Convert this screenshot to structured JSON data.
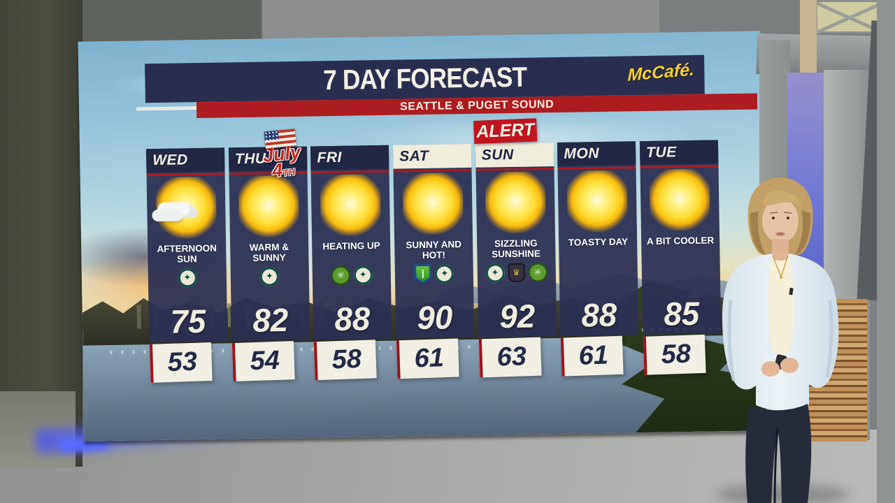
{
  "broadcast": {
    "title": "7 DAY FORECAST",
    "subtitle": "SEATTLE & PUGET SOUND",
    "sponsor": "McCafé.",
    "alert_label": "ALERT",
    "holiday": {
      "word": "July",
      "number": "4",
      "suffix": "TH"
    }
  },
  "forecast": {
    "location": "Seattle & Puget Sound",
    "days": [
      {
        "label": "WED",
        "header": "dark",
        "icon": "sun-behind-cloud-icon",
        "condition": "AFTERNOON SUN",
        "high": "75",
        "low": "53",
        "logos": [
          "mariners-logo"
        ]
      },
      {
        "label": "THU",
        "header": "dark",
        "icon": "sun-icon",
        "condition": "WARM & SUNNY",
        "high": "82",
        "low": "54",
        "logos": [
          "mariners-logo"
        ],
        "holiday": true
      },
      {
        "label": "FRI",
        "header": "dark",
        "icon": "sun-icon",
        "condition": "HEATING UP",
        "high": "88",
        "low": "58",
        "logos": [
          "sounders-round-logo",
          "mariners-logo"
        ]
      },
      {
        "label": "SAT",
        "header": "light",
        "icon": "sun-icon",
        "condition": "SUNNY AND HOT!",
        "high": "90",
        "low": "61",
        "logos": [
          "sounders-shield-logo",
          "mariners-logo"
        ]
      },
      {
        "label": "SUN",
        "header": "light",
        "icon": "sun-icon",
        "condition": "SIZZLING SUNSHINE",
        "high": "92",
        "low": "63",
        "logos": [
          "mariners-logo",
          "reign-logo",
          "sounders-round-logo"
        ],
        "alert": true
      },
      {
        "label": "MON",
        "header": "dark",
        "icon": "sun-icon",
        "condition": "TOASTY DAY",
        "high": "88",
        "low": "61",
        "logos": []
      },
      {
        "label": "TUE",
        "header": "dark",
        "icon": "sun-icon",
        "condition": "A BIT COOLER",
        "high": "85",
        "low": "58",
        "logos": []
      }
    ]
  },
  "colors": {
    "navy": "#2A2E4E",
    "banner_red": "#AD1C21",
    "alert_red": "#C01420",
    "cream": "#F0EDE0",
    "sun_yellow": "#FFD92E",
    "mccafe_yellow": "#F2CF2C"
  }
}
